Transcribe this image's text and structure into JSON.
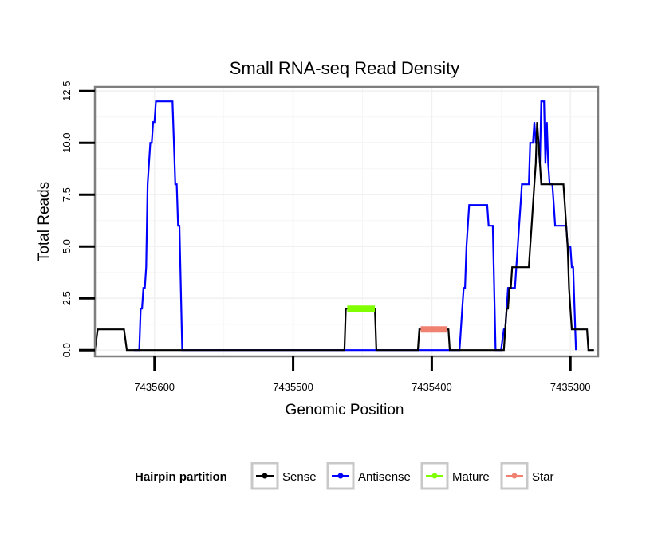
{
  "chart_data": {
    "type": "line",
    "title": "Small RNA-seq Read Density",
    "xlabel": "Genomic Position",
    "ylabel": "Total Reads",
    "xlim": [
      7435643,
      7435280
    ],
    "ylim": [
      -0.3,
      12.7
    ],
    "x_reversed": true,
    "grid": true,
    "x_ticks": [
      7435600,
      7435500,
      7435400,
      7435300
    ],
    "x_tick_labels": [
      "7435600",
      "7435500",
      "7435400",
      "7435300"
    ],
    "y_ticks": [
      0,
      2.5,
      5,
      7.5,
      10,
      12.5
    ],
    "y_tick_labels": [
      "0.0",
      "2.5",
      "5.0",
      "7.5",
      "10.0",
      "12.5"
    ],
    "legend": {
      "title": "Hairpin partition",
      "position": "bottom",
      "entries": [
        "Sense",
        "Antisense",
        "Mature",
        "Star"
      ]
    },
    "series": [
      {
        "name": "Antisense",
        "color": "#0000ff",
        "points": [
          [
            7435615,
            0
          ],
          [
            7435611,
            0
          ],
          [
            7435610,
            2
          ],
          [
            7435609,
            2
          ],
          [
            7435608,
            3
          ],
          [
            7435607,
            3
          ],
          [
            7435606,
            4
          ],
          [
            7435605,
            8
          ],
          [
            7435604,
            9
          ],
          [
            7435603,
            10
          ],
          [
            7435602,
            10
          ],
          [
            7435601,
            11
          ],
          [
            7435600,
            11
          ],
          [
            7435599,
            12
          ],
          [
            7435587,
            12
          ],
          [
            7435586,
            10
          ],
          [
            7435585,
            8
          ],
          [
            7435584,
            8
          ],
          [
            7435583,
            6
          ],
          [
            7435582,
            6
          ],
          [
            7435580,
            0
          ],
          [
            7435380,
            0
          ],
          [
            7435378,
            2
          ],
          [
            7435377,
            3
          ],
          [
            7435376,
            3
          ],
          [
            7435375,
            5
          ],
          [
            7435374,
            6
          ],
          [
            7435373,
            7
          ],
          [
            7435360,
            7
          ],
          [
            7435359,
            6
          ],
          [
            7435356,
            6
          ],
          [
            7435354,
            0
          ],
          [
            7435350,
            0
          ],
          [
            7435348,
            1
          ],
          [
            7435347,
            1
          ],
          [
            7435346,
            2
          ],
          [
            7435345,
            3
          ],
          [
            7435340,
            3
          ],
          [
            7435339,
            4
          ],
          [
            7435338,
            5
          ],
          [
            7435337,
            6
          ],
          [
            7435336,
            7
          ],
          [
            7435335,
            8
          ],
          [
            7435330,
            8
          ],
          [
            7435329,
            10
          ],
          [
            7435327,
            10
          ],
          [
            7435326,
            11
          ],
          [
            7435325,
            10
          ],
          [
            7435323,
            10
          ],
          [
            7435322,
            9
          ],
          [
            7435321,
            12
          ],
          [
            7435319,
            12
          ],
          [
            7435318,
            9
          ],
          [
            7435317,
            11
          ],
          [
            7435316,
            9
          ],
          [
            7435315,
            8
          ],
          [
            7435313,
            8
          ],
          [
            7435312,
            7
          ],
          [
            7435311,
            6
          ],
          [
            7435303,
            6
          ],
          [
            7435302,
            5
          ],
          [
            7435300,
            5
          ],
          [
            7435299,
            4
          ],
          [
            7435298,
            4
          ],
          [
            7435297,
            2
          ],
          [
            7435296,
            0
          ]
        ]
      },
      {
        "name": "Sense",
        "color": "#000000",
        "points": [
          [
            7435643,
            0
          ],
          [
            7435641,
            1
          ],
          [
            7435622,
            1
          ],
          [
            7435620,
            0
          ],
          [
            7435463,
            0
          ],
          [
            7435462,
            2
          ],
          [
            7435450,
            2
          ],
          [
            7435441,
            2
          ],
          [
            7435440,
            0
          ],
          [
            7435410,
            0
          ],
          [
            7435409,
            1
          ],
          [
            7435400,
            1
          ],
          [
            7435388,
            1
          ],
          [
            7435387,
            0
          ],
          [
            7435348,
            0
          ],
          [
            7435347,
            1
          ],
          [
            7435346,
            2
          ],
          [
            7435345,
            2
          ],
          [
            7435344,
            3
          ],
          [
            7435343,
            3
          ],
          [
            7435342,
            4
          ],
          [
            7435330,
            4
          ],
          [
            7435329,
            5
          ],
          [
            7435328,
            6
          ],
          [
            7435327,
            7
          ],
          [
            7435326,
            8
          ],
          [
            7435325,
            9
          ],
          [
            7435324,
            11
          ],
          [
            7435323,
            10
          ],
          [
            7435322,
            9
          ],
          [
            7435321,
            8
          ],
          [
            7435305,
            8
          ],
          [
            7435304,
            7
          ],
          [
            7435303,
            6
          ],
          [
            7435302,
            5
          ],
          [
            7435301,
            3
          ],
          [
            7435300,
            2
          ],
          [
            7435299,
            1
          ],
          [
            7435288,
            1
          ],
          [
            7435287,
            0
          ],
          [
            7435283,
            0
          ]
        ]
      },
      {
        "name": "Mature",
        "color": "#80ff00",
        "points": [
          [
            7435461,
            2
          ],
          [
            7435441,
            2
          ]
        ]
      },
      {
        "name": "Star",
        "color": "#f08070",
        "points": [
          [
            7435408,
            1
          ],
          [
            7435389,
            1
          ]
        ]
      }
    ]
  }
}
